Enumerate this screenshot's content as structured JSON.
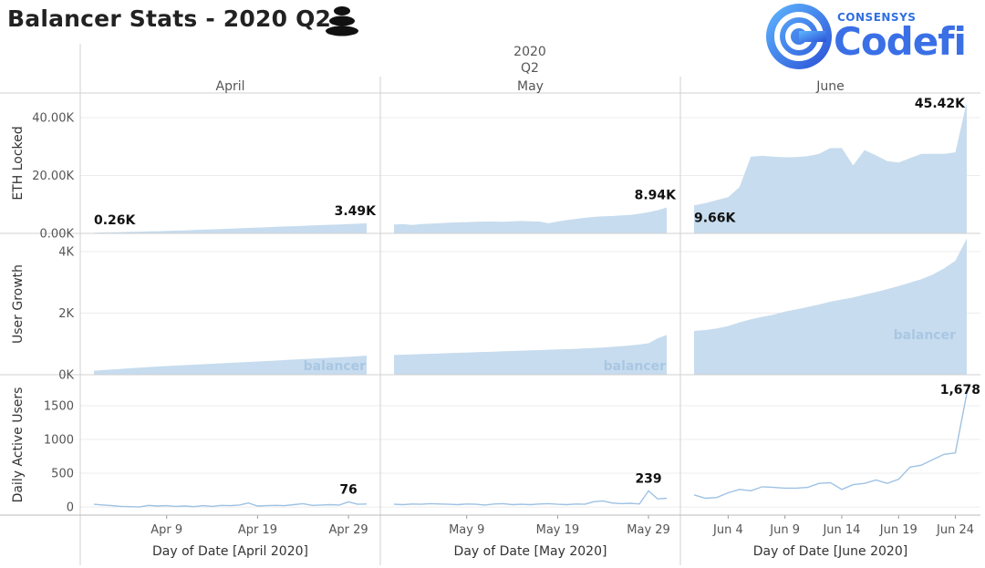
{
  "page": {
    "title": "Balancer Stats - 2020 Q2",
    "header_year": "2020",
    "header_quarter": "Q2",
    "logo_small": "CONSENSYS",
    "logo_big": "Codefi",
    "watermark": "balancer"
  },
  "colors": {
    "area_fill": "#c7dcee",
    "line": "#9ec2e3",
    "grid": "#ececec",
    "divider": "#d0d0d0"
  },
  "chart_data": {
    "type": "area",
    "columns": [
      {
        "label": "April",
        "xlabel": "Day of Date [April 2020]",
        "xticks": [
          "Apr 9",
          "Apr 19",
          "Apr 29"
        ]
      },
      {
        "label": "May",
        "xlabel": "Day of Date [May 2020]",
        "xticks": [
          "May 9",
          "May 19",
          "May 29"
        ]
      },
      {
        "label": "June",
        "xlabel": "Day of Date [June 2020]",
        "xticks": [
          "Jun 4",
          "Jun 9",
          "Jun 14",
          "Jun 19",
          "Jun 24"
        ]
      }
    ],
    "rows": [
      {
        "ylabel": "ETH Locked",
        "type": "area",
        "ylim": [
          0,
          46000
        ],
        "yticks": [
          "0.00K",
          "20.00K",
          "40.00K"
        ],
        "series": [
          [
            260,
            300,
            380,
            450,
            520,
            600,
            680,
            760,
            850,
            950,
            1050,
            1160,
            1280,
            1400,
            1520,
            1650,
            1780,
            1900,
            2020,
            2140,
            2260,
            2380,
            2500,
            2620,
            2740,
            2860,
            2980,
            3100,
            3220,
            3350,
            3490
          ],
          [
            3100,
            3200,
            2900,
            3200,
            3400,
            3500,
            3700,
            3800,
            3900,
            4000,
            4100,
            4100,
            4000,
            4200,
            4300,
            4200,
            4100,
            3500,
            4100,
            4600,
            5000,
            5400,
            5700,
            5900,
            6000,
            6200,
            6400,
            6800,
            7300,
            8000,
            8940
          ],
          [
            9660,
            10500,
            11500,
            12500,
            16000,
            26500,
            26800,
            26500,
            26300,
            26400,
            26700,
            27500,
            29500,
            29500,
            23500,
            28800,
            27000,
            25000,
            24500,
            26000,
            27500,
            27500,
            27500,
            28000,
            45420
          ]
        ],
        "labels": [
          [
            {
              "i": 0,
              "text": "0.26K"
            },
            {
              "i": 30,
              "text": "3.49K"
            }
          ],
          [
            {
              "i": 30,
              "text": "8.94K"
            }
          ],
          [
            {
              "i": 0,
              "text": "9.66K"
            },
            {
              "i": 24,
              "text": "45.42K"
            }
          ]
        ]
      },
      {
        "ylabel": "User Growth",
        "type": "area",
        "ylim": [
          0,
          4350
        ],
        "yticks": [
          "0K",
          "2K",
          "4K"
        ],
        "series": [
          [
            130,
            150,
            170,
            190,
            210,
            230,
            250,
            265,
            280,
            295,
            310,
            325,
            340,
            355,
            370,
            385,
            400,
            415,
            430,
            445,
            460,
            475,
            490,
            505,
            520,
            535,
            550,
            565,
            580,
            600,
            620
          ],
          [
            640,
            650,
            660,
            670,
            680,
            690,
            700,
            710,
            720,
            730,
            740,
            750,
            760,
            770,
            780,
            790,
            800,
            810,
            820,
            830,
            840,
            855,
            870,
            885,
            905,
            925,
            950,
            980,
            1020,
            1180,
            1290
          ],
          [
            1420,
            1450,
            1500,
            1580,
            1700,
            1800,
            1880,
            1950,
            2050,
            2120,
            2200,
            2280,
            2370,
            2440,
            2510,
            2600,
            2680,
            2780,
            2880,
            2990,
            3100,
            3250,
            3450,
            3700,
            4420
          ]
        ],
        "watermark_cols": [
          0,
          1,
          2
        ]
      },
      {
        "ylabel": "Daily Active Users",
        "type": "line",
        "ylim": [
          -120,
          1850
        ],
        "yticks": [
          "0",
          "500",
          "1000",
          "1500"
        ],
        "series": [
          [
            40,
            30,
            20,
            10,
            5,
            0,
            25,
            15,
            20,
            10,
            15,
            5,
            20,
            10,
            25,
            20,
            30,
            60,
            15,
            20,
            25,
            20,
            35,
            50,
            25,
            30,
            35,
            30,
            76,
            40,
            45
          ],
          [
            40,
            35,
            45,
            40,
            50,
            45,
            40,
            35,
            45,
            40,
            30,
            45,
            50,
            35,
            40,
            35,
            45,
            50,
            40,
            35,
            45,
            40,
            80,
            90,
            60,
            50,
            55,
            45,
            239,
            120,
            130
          ],
          [
            180,
            130,
            140,
            210,
            260,
            240,
            300,
            290,
            280,
            280,
            290,
            350,
            360,
            260,
            330,
            350,
            400,
            350,
            410,
            590,
            620,
            700,
            780,
            800,
            1678
          ]
        ],
        "labels": [
          [
            {
              "i": 28,
              "text": "76"
            }
          ],
          [
            {
              "i": 28,
              "text": "239"
            }
          ],
          [
            {
              "i": 24,
              "text": "1,678"
            }
          ]
        ]
      }
    ]
  }
}
